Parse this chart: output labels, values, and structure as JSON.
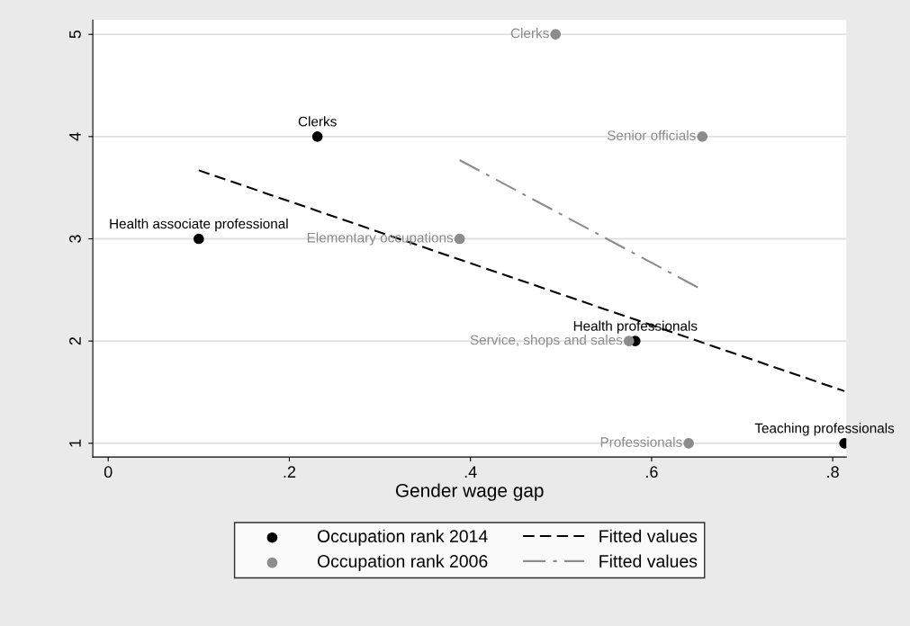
{
  "chart_data": {
    "type": "scatter",
    "xlabel": "Gender wage gap",
    "xlim": [
      -0.017,
      0.815
    ],
    "xticks": [
      {
        "value": 0,
        "label": "0"
      },
      {
        "value": 0.2,
        "label": ".2"
      },
      {
        "value": 0.4,
        "label": ".4"
      },
      {
        "value": 0.6,
        "label": ".6"
      },
      {
        "value": 0.8,
        "label": ".8"
      }
    ],
    "ylim": [
      0.866,
      5.14
    ],
    "yticks": [
      1,
      2,
      3,
      4,
      5
    ],
    "grid": "y",
    "legend": "bottom",
    "series": [
      {
        "name": "Occupation rank 2014",
        "marker": "circle",
        "color": "#000000",
        "x": [
          0.1,
          0.231,
          0.582,
          0.813
        ],
        "values": [
          3,
          4,
          2,
          1
        ],
        "value_labels": [
          "Health associate professional",
          "Clerks",
          "Health professionals",
          "Teaching professionals"
        ]
      },
      {
        "name": "Fitted values",
        "type": "line",
        "color": "#000000",
        "line_style": "dashed",
        "x": [
          0.1,
          0.813
        ],
        "values": [
          3.67,
          1.51
        ]
      },
      {
        "name": "Occupation rank 2006",
        "marker": "circle",
        "color": "#8c8c8c",
        "x": [
          0.494,
          0.656,
          0.388,
          0.575,
          0.641
        ],
        "values": [
          5,
          4,
          3,
          2,
          1
        ],
        "value_labels": [
          "Clerks",
          "Senior officials",
          "Elementary occupations",
          "Service, shops and sales",
          "Professionals"
        ]
      },
      {
        "name": "Fitted values",
        "type": "line",
        "color": "#8c8c8c",
        "line_style": "dashdot",
        "x": [
          0.388,
          0.652
        ],
        "values": [
          3.77,
          2.52
        ]
      }
    ]
  }
}
